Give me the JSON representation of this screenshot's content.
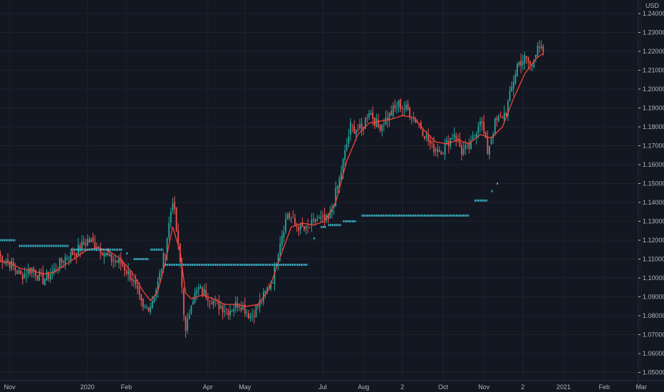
{
  "chart_data": {
    "type": "candlestick",
    "currency": "USD",
    "colors": {
      "background": "#131722",
      "up": "#26a69a",
      "down": "#ef5350",
      "ma_line": "#f44336",
      "levels": "#3cc3d6",
      "axis_text": "#b2b5be",
      "grid": "#1e222d"
    },
    "y_ticks": [
      "1.24000",
      "1.23000",
      "1.22000",
      "1.21000",
      "1.20000",
      "1.19000",
      "1.18000",
      "1.17000",
      "1.16000",
      "1.15000",
      "1.14000",
      "1.13000",
      "1.12000",
      "1.11000",
      "1.10000",
      "1.09000",
      "1.08000",
      "1.07000",
      "1.06000",
      "1.05000"
    ],
    "ylim": [
      1.047,
      1.246
    ],
    "x_ticks": [
      {
        "label": "Nov",
        "index": 6
      },
      {
        "label": "2020",
        "index": 48
      },
      {
        "label": "Feb",
        "index": 69
      },
      {
        "label": "Apr",
        "index": 113
      },
      {
        "label": "May",
        "index": 133
      },
      {
        "label": "Jul",
        "index": 175
      },
      {
        "label": "Aug",
        "index": 197
      },
      {
        "label": "2",
        "index": 218
      },
      {
        "label": "Oct",
        "index": 240
      },
      {
        "label": "Nov",
        "index": 262
      },
      {
        "label": "2",
        "index": 283
      },
      {
        "label": "2021",
        "index": 305
      },
      {
        "label": "Feb",
        "index": 327
      },
      {
        "label": "Mar",
        "index": 347
      }
    ],
    "close_trend": [
      [
        0,
        1.112
      ],
      [
        6,
        1.108
      ],
      [
        12,
        1.101
      ],
      [
        18,
        1.105
      ],
      [
        24,
        1.099
      ],
      [
        30,
        1.104
      ],
      [
        36,
        1.111
      ],
      [
        42,
        1.114
      ],
      [
        48,
        1.12
      ],
      [
        54,
        1.117
      ],
      [
        60,
        1.11
      ],
      [
        66,
        1.108
      ],
      [
        72,
        1.1
      ],
      [
        78,
        1.083
      ],
      [
        82,
        1.086
      ],
      [
        86,
        1.097
      ],
      [
        90,
        1.115
      ],
      [
        94,
        1.142
      ],
      [
        98,
        1.108
      ],
      [
        101,
        1.07
      ],
      [
        104,
        1.088
      ],
      [
        108,
        1.094
      ],
      [
        113,
        1.091
      ],
      [
        118,
        1.086
      ],
      [
        124,
        1.083
      ],
      [
        130,
        1.087
      ],
      [
        136,
        1.08
      ],
      [
        142,
        1.088
      ],
      [
        148,
        1.1
      ],
      [
        152,
        1.12
      ],
      [
        156,
        1.134
      ],
      [
        160,
        1.128
      ],
      [
        166,
        1.125
      ],
      [
        172,
        1.131
      ],
      [
        178,
        1.13
      ],
      [
        184,
        1.152
      ],
      [
        190,
        1.18
      ],
      [
        196,
        1.178
      ],
      [
        200,
        1.189
      ],
      [
        205,
        1.18
      ],
      [
        210,
        1.185
      ],
      [
        216,
        1.192
      ],
      [
        222,
        1.188
      ],
      [
        228,
        1.18
      ],
      [
        234,
        1.169
      ],
      [
        240,
        1.168
      ],
      [
        246,
        1.177
      ],
      [
        250,
        1.167
      ],
      [
        255,
        1.17
      ],
      [
        260,
        1.185
      ],
      [
        264,
        1.167
      ],
      [
        268,
        1.182
      ],
      [
        274,
        1.188
      ],
      [
        280,
        1.213
      ],
      [
        284,
        1.216
      ],
      [
        288,
        1.212
      ],
      [
        291,
        1.225
      ],
      [
        294,
        1.218
      ]
    ],
    "ma_trend": [
      [
        0,
        1.109
      ],
      [
        6,
        1.108
      ],
      [
        12,
        1.105
      ],
      [
        18,
        1.104
      ],
      [
        24,
        1.102
      ],
      [
        30,
        1.103
      ],
      [
        36,
        1.107
      ],
      [
        42,
        1.111
      ],
      [
        48,
        1.115
      ],
      [
        54,
        1.116
      ],
      [
        60,
        1.114
      ],
      [
        66,
        1.11
      ],
      [
        72,
        1.103
      ],
      [
        78,
        1.093
      ],
      [
        82,
        1.088
      ],
      [
        86,
        1.093
      ],
      [
        90,
        1.108
      ],
      [
        94,
        1.127
      ],
      [
        98,
        1.114
      ],
      [
        101,
        1.092
      ],
      [
        104,
        1.089
      ],
      [
        110,
        1.091
      ],
      [
        116,
        1.089
      ],
      [
        122,
        1.086
      ],
      [
        128,
        1.086
      ],
      [
        134,
        1.085
      ],
      [
        140,
        1.086
      ],
      [
        146,
        1.094
      ],
      [
        152,
        1.111
      ],
      [
        158,
        1.127
      ],
      [
        164,
        1.129
      ],
      [
        170,
        1.128
      ],
      [
        176,
        1.13
      ],
      [
        182,
        1.14
      ],
      [
        188,
        1.162
      ],
      [
        194,
        1.176
      ],
      [
        200,
        1.182
      ],
      [
        206,
        1.183
      ],
      [
        212,
        1.184
      ],
      [
        218,
        1.186
      ],
      [
        224,
        1.185
      ],
      [
        230,
        1.178
      ],
      [
        236,
        1.172
      ],
      [
        242,
        1.171
      ],
      [
        248,
        1.173
      ],
      [
        254,
        1.171
      ],
      [
        260,
        1.176
      ],
      [
        266,
        1.174
      ],
      [
        272,
        1.18
      ],
      [
        278,
        1.195
      ],
      [
        284,
        1.208
      ],
      [
        290,
        1.216
      ],
      [
        294,
        1.219
      ]
    ],
    "levels": [
      {
        "x_start": 0,
        "x_end": 9,
        "y": 1.12
      },
      {
        "x_start": 11,
        "x_end": 38,
        "y": 1.117
      },
      {
        "x_start": 39,
        "x_end": 67,
        "y": 1.115
      },
      {
        "x_start": 69,
        "x_end": 70,
        "y": 1.113
      },
      {
        "x_start": 73,
        "x_end": 81,
        "y": 1.11
      },
      {
        "x_start": 82,
        "x_end": 89,
        "y": 1.115
      },
      {
        "x_start": 90,
        "x_end": 167,
        "y": 1.107
      },
      {
        "x_start": 170,
        "x_end": 171,
        "y": 1.121
      },
      {
        "x_start": 174,
        "x_end": 177,
        "y": 1.127
      },
      {
        "x_start": 178,
        "x_end": 185,
        "y": 1.128
      },
      {
        "x_start": 186,
        "x_end": 193,
        "y": 1.13
      },
      {
        "x_start": 196,
        "x_end": 254,
        "y": 1.133
      },
      {
        "x_start": 257,
        "x_end": 264,
        "y": 1.141
      },
      {
        "x_start": 266,
        "x_end": 267,
        "y": 1.146
      },
      {
        "x_start": 269,
        "x_end": 270,
        "y": 1.15
      }
    ]
  }
}
